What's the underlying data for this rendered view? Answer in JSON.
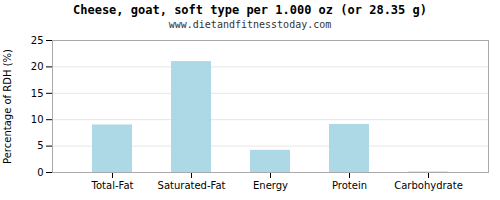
{
  "chart_data": {
    "type": "bar",
    "title": "Cheese, goat, soft type per 1.000 oz (or 28.35 g)",
    "subtitle": "www.dietandfitnesstoday.com",
    "categories": [
      "Total-Fat",
      "Saturated-Fat",
      "Energy",
      "Protein",
      "Carbohydrate"
    ],
    "values": [
      9.0,
      21.0,
      4.2,
      9.1,
      0.1
    ],
    "color": "#add8e6",
    "ylabel": "Percentage of RDH (%)",
    "ylim": [
      0,
      25
    ],
    "yticks": [
      0,
      5,
      10,
      15,
      20,
      25
    ],
    "grid": true
  }
}
